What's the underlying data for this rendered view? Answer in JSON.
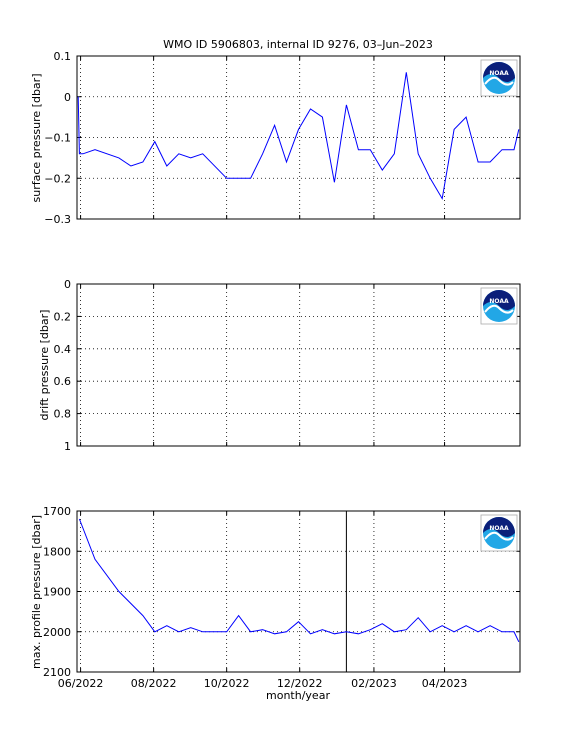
{
  "figure_title": "WMO ID 5906803, internal ID 9276, 03–Jun–2023",
  "x_axis": {
    "label": "month/year",
    "tick_labels": [
      "06/2022",
      "08/2022",
      "10/2022",
      "12/2022",
      "02/2023",
      "04/2023"
    ],
    "range": [
      "2022-05-29",
      "2023-06-03"
    ]
  },
  "colors": {
    "line": "#0000ff",
    "axes": "#000000",
    "grid": "#000000"
  },
  "logo": {
    "text": "NOAA",
    "icon": "noaa-logo-icon"
  },
  "chart_data": [
    {
      "type": "line",
      "ylabel": "surface pressure [dbar]",
      "ylim": [
        -0.3,
        0.1
      ],
      "y_reversed": false,
      "yticks": [
        -0.3,
        -0.2,
        -0.1,
        0,
        0.1
      ],
      "ytick_labels": [
        "−0.3",
        "−0.2",
        "−0.1",
        "0",
        "0.1"
      ],
      "grid": true,
      "series": [
        {
          "x": [
            "2022-05-30",
            "2022-05-31",
            "2022-06-03",
            "2022-06-13",
            "2022-07-03",
            "2022-07-13",
            "2022-07-23",
            "2022-08-02",
            "2022-08-12",
            "2022-08-22",
            "2022-09-01",
            "2022-09-11",
            "2022-10-01",
            "2022-10-21",
            "2022-10-31",
            "2022-11-10",
            "2022-11-20",
            "2022-11-30",
            "2022-12-10",
            "2022-12-20",
            "2022-12-30",
            "2023-01-09",
            "2023-01-19",
            "2023-01-29",
            "2023-02-08",
            "2023-02-18",
            "2023-02-28",
            "2023-03-10",
            "2023-03-20",
            "2023-03-30",
            "2023-04-09",
            "2023-04-19",
            "2023-04-29",
            "2023-05-09",
            "2023-05-19",
            "2023-05-29",
            "2023-06-02"
          ],
          "y": [
            0.0,
            -0.14,
            -0.14,
            -0.13,
            -0.15,
            -0.17,
            -0.16,
            -0.11,
            -0.17,
            -0.14,
            -0.15,
            -0.14,
            -0.2,
            -0.2,
            -0.14,
            -0.07,
            -0.16,
            -0.08,
            -0.03,
            -0.05,
            -0.21,
            -0.02,
            -0.13,
            -0.13,
            -0.18,
            -0.14,
            0.06,
            -0.14,
            -0.2,
            -0.25,
            -0.08,
            -0.05,
            -0.16,
            -0.16,
            -0.13,
            -0.13,
            -0.08
          ]
        }
      ]
    },
    {
      "type": "line",
      "ylabel": "drift pressure [dbar]",
      "ylim": [
        0,
        1
      ],
      "y_reversed": true,
      "yticks": [
        0,
        0.2,
        0.4,
        0.6,
        0.8,
        1
      ],
      "ytick_labels": [
        "0",
        "0.2",
        "0.4",
        "0.6",
        "0.8",
        "1"
      ],
      "grid": true,
      "series": []
    },
    {
      "type": "line",
      "ylabel": "max. profile pressure [dbar]",
      "ylim": [
        1700,
        2100
      ],
      "y_reversed": true,
      "yticks": [
        1700,
        1800,
        1900,
        2000,
        2100
      ],
      "ytick_labels": [
        "1700",
        "1800",
        "1900",
        "2000",
        "2100"
      ],
      "grid": true,
      "vline_x": "2023-01-09",
      "series": [
        {
          "x": [
            "2022-05-31",
            "2022-06-13",
            "2022-07-03",
            "2022-07-23",
            "2022-08-02",
            "2022-08-12",
            "2022-08-22",
            "2022-09-01",
            "2022-09-11",
            "2022-10-01",
            "2022-10-11",
            "2022-10-21",
            "2022-10-31",
            "2022-11-10",
            "2022-11-20",
            "2022-11-30",
            "2022-12-10",
            "2022-12-20",
            "2022-12-30",
            "2023-01-09",
            "2023-01-19",
            "2023-01-29",
            "2023-02-08",
            "2023-02-18",
            "2023-02-28",
            "2023-03-10",
            "2023-03-20",
            "2023-03-30",
            "2023-04-09",
            "2023-04-19",
            "2023-04-29",
            "2023-05-09",
            "2023-05-19",
            "2023-05-29",
            "2023-06-02"
          ],
          "y": [
            1720,
            1820,
            1900,
            1960,
            2000,
            1985,
            2000,
            1990,
            2000,
            2000,
            1960,
            2000,
            1995,
            2005,
            2000,
            1975,
            2005,
            1995,
            2005,
            2000,
            2005,
            1995,
            1980,
            2000,
            1995,
            1965,
            2000,
            1985,
            2000,
            1985,
            2000,
            1985,
            2000,
            2000,
            2025
          ]
        }
      ]
    }
  ]
}
